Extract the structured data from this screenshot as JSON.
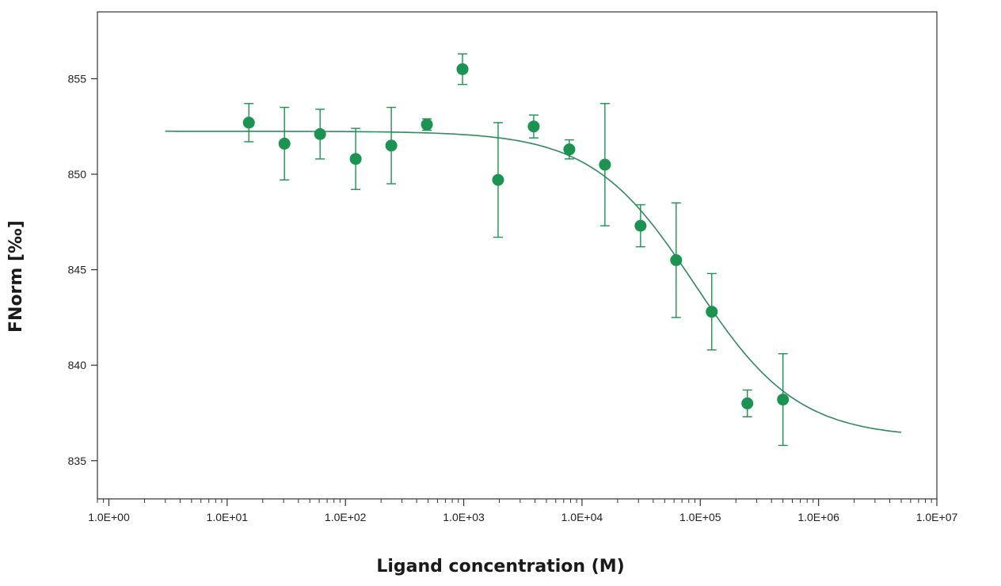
{
  "chart_data": {
    "type": "scatter",
    "title": "",
    "xlabel": "Ligand concentration (M)",
    "ylabel": "FNorm [‰]",
    "x_scale": "log",
    "xlim": [
      0.8,
      10000000
    ],
    "ylim": [
      833,
      858.5
    ],
    "x_ticks": [
      1,
      10,
      100,
      1000,
      10000,
      100000,
      1000000,
      10000000
    ],
    "x_tick_labels": [
      "1.0E+00",
      "1.0E+01",
      "1.0E+02",
      "1.0E+03",
      "1.0E+04",
      "1.0E+05",
      "1.0E+06",
      "1.0E+07"
    ],
    "y_ticks": [
      835,
      840,
      845,
      850,
      855
    ],
    "y_tick_labels": [
      "835",
      "840",
      "845",
      "850",
      "855"
    ],
    "grid": false,
    "colors": {
      "points": "#1a9450",
      "fit": "#2e8b5e",
      "axis": "#333333"
    },
    "series": [
      {
        "type": "scatter_with_error",
        "x": [
          15.26,
          30.52,
          61.04,
          122.07,
          244.14,
          488.28,
          976.56,
          1953.13,
          3906.25,
          7812.5,
          15625,
          31250,
          62500,
          125000,
          250000,
          500000
        ],
        "y": [
          852.7,
          851.6,
          852.1,
          850.8,
          851.5,
          852.6,
          855.5,
          849.7,
          852.5,
          851.3,
          850.5,
          847.3,
          845.5,
          842.8,
          838.0,
          838.2
        ],
        "err": [
          1.0,
          1.9,
          1.3,
          1.6,
          2.0,
          0.3,
          0.8,
          3.0,
          0.6,
          0.5,
          3.2,
          1.1,
          3.0,
          2.0,
          0.7,
          2.4
        ]
      },
      {
        "type": "fit_curve",
        "model": "sigmoid",
        "top": 852.25,
        "bottom": 836.2,
        "ec50": 90000,
        "hill": 1,
        "x_range": [
          3,
          5000000
        ]
      }
    ]
  }
}
